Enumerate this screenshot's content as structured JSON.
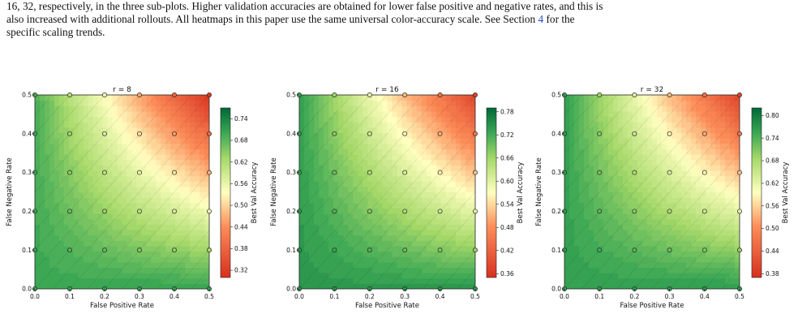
{
  "caption": {
    "line1": "16, 32, respectively, in the three sub-plots. Higher validation accuracies are obtained for lower false positive and negative rates, and this is",
    "line2": "also increased with additional rollouts. All heatmaps in this paper use the same universal color-accuracy scale. See Section",
    "section_ref": "4",
    "line2_end": "for the",
    "line3": "specific scaling trends."
  },
  "chart_data": [
    {
      "type": "heatmap",
      "title": "r = 8",
      "xlabel": "False Positive Rate",
      "ylabel": "False Negative Rate",
      "xlim": [
        0.0,
        0.5
      ],
      "ylim": [
        0.0,
        0.5
      ],
      "x_ticks": [
        "0.0",
        "0.1",
        "0.2",
        "0.3",
        "0.4",
        "0.5"
      ],
      "y_ticks": [
        "0.0",
        "0.1",
        "0.2",
        "0.3",
        "0.4",
        "0.5"
      ],
      "colorbar_label": "Best Val Accuracy",
      "colorbar_ticks": [
        "0.74",
        "0.68",
        "0.62",
        "0.56",
        "0.50",
        "0.44",
        "0.38",
        "0.32"
      ],
      "colorbar_range": [
        0.3,
        0.77
      ],
      "sample_points": [
        0.0,
        0.1,
        0.2,
        0.3,
        0.4,
        0.5
      ],
      "corner_values": {
        "fp0_fn0": 0.7,
        "fp05_fn0": 0.71,
        "fp0_fn05": 0.69,
        "fp05_fn05": 0.31
      }
    },
    {
      "type": "heatmap",
      "title": "r = 16",
      "xlabel": "False Positive Rate",
      "ylabel": "False Negative Rate",
      "xlim": [
        0.0,
        0.5
      ],
      "ylim": [
        0.0,
        0.5
      ],
      "x_ticks": [
        "0.0",
        "0.1",
        "0.2",
        "0.3",
        "0.4",
        "0.5"
      ],
      "y_ticks": [
        "0.0",
        "0.1",
        "0.2",
        "0.3",
        "0.4",
        "0.5"
      ],
      "colorbar_label": "Best Val Accuracy",
      "colorbar_ticks": [
        "0.78",
        "0.72",
        "0.66",
        "0.60",
        "0.54",
        "0.48",
        "0.42",
        "0.36"
      ],
      "colorbar_range": [
        0.35,
        0.79
      ],
      "sample_points": [
        0.0,
        0.1,
        0.2,
        0.3,
        0.4,
        0.5
      ],
      "corner_values": {
        "fp0_fn0": 0.74,
        "fp05_fn0": 0.74,
        "fp0_fn05": 0.73,
        "fp05_fn05": 0.38
      }
    },
    {
      "type": "heatmap",
      "title": "r = 32",
      "xlabel": "False Positive Rate",
      "ylabel": "False Negative Rate",
      "xlim": [
        0.0,
        0.5
      ],
      "ylim": [
        0.0,
        0.5
      ],
      "x_ticks": [
        "0.0",
        "0.1",
        "0.2",
        "0.3",
        "0.4",
        "0.5"
      ],
      "y_ticks": [
        "0.0",
        "0.1",
        "0.2",
        "0.3",
        "0.4",
        "0.5"
      ],
      "colorbar_label": "Best Val Accuracy",
      "colorbar_ticks": [
        "0.80",
        "0.74",
        "0.68",
        "0.62",
        "0.56",
        "0.50",
        "0.44",
        "0.38"
      ],
      "colorbar_range": [
        0.37,
        0.82
      ],
      "sample_points": [
        0.0,
        0.1,
        0.2,
        0.3,
        0.4,
        0.5
      ],
      "corner_values": {
        "fp0_fn0": 0.76,
        "fp05_fn0": 0.77,
        "fp0_fn05": 0.76,
        "fp05_fn05": 0.4
      }
    }
  ],
  "colors": {
    "low": "#d7301f",
    "mid_low": "#fdae61",
    "mid": "#ffffbf",
    "mid_high": "#a6d96a",
    "high": "#1a9641",
    "top": "#00683a",
    "link": "#1f4fbf"
  }
}
